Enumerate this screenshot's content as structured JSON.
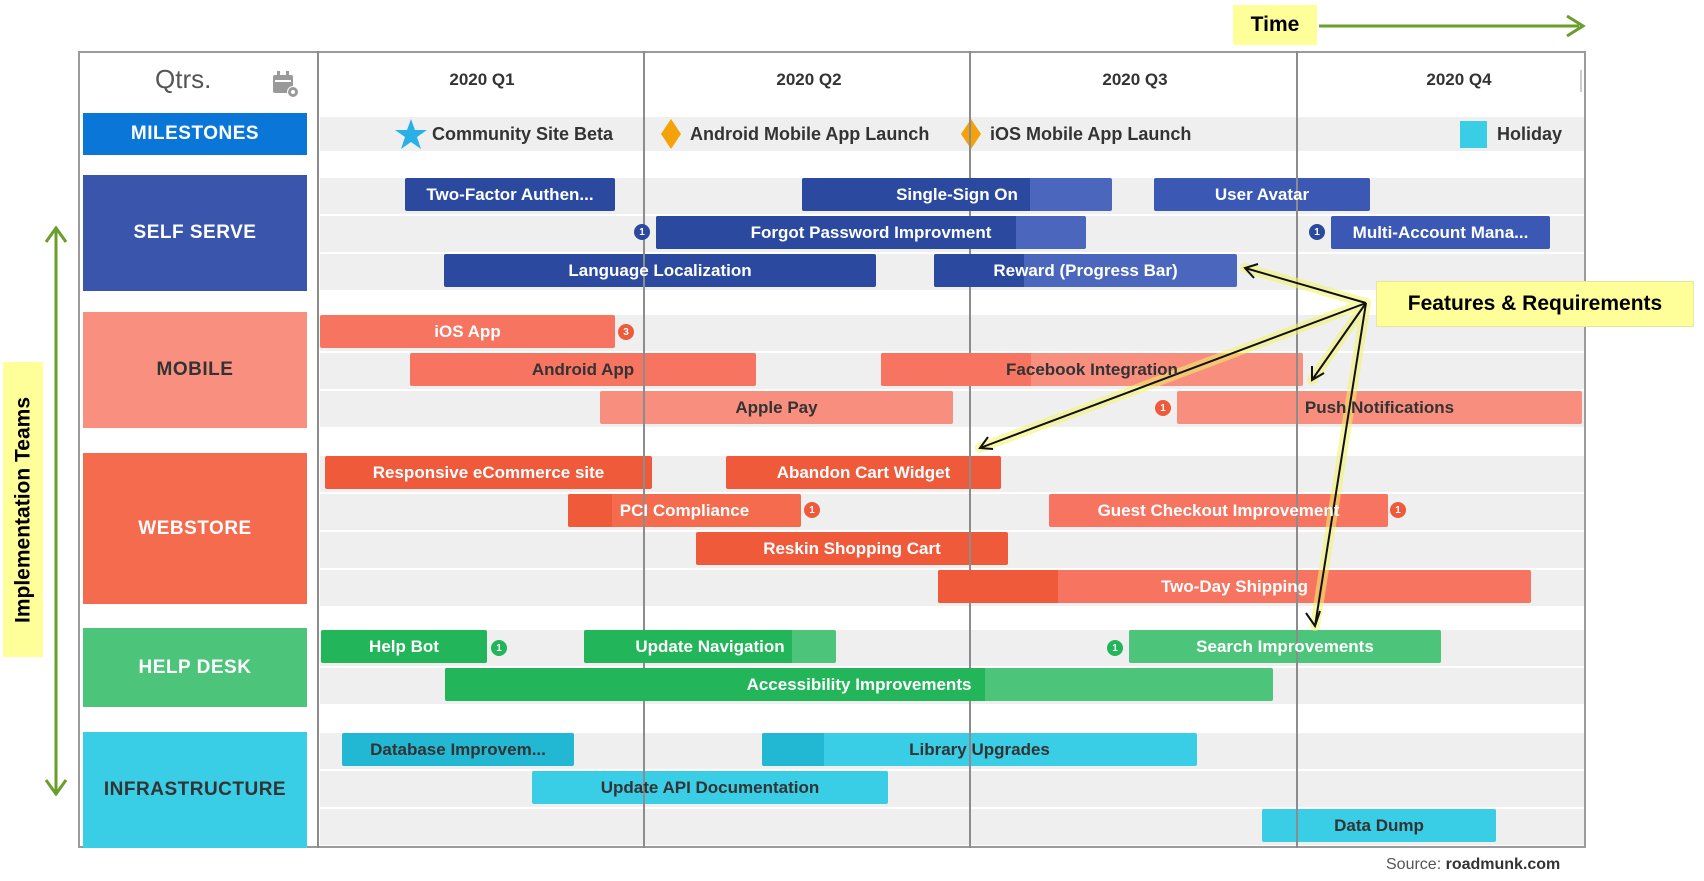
{
  "header": {
    "qtrs_label": "Qtrs.",
    "quarters": [
      "2020 Q1",
      "2020 Q2",
      "2020 Q3",
      "2020 Q4"
    ]
  },
  "time_label": "Time",
  "side_label": "Implementation Teams",
  "callout_label": "Features & Requirements",
  "source": {
    "prefix": "Source: ",
    "site": "roadmunk.com"
  },
  "teams": {
    "milestones": "MILESTONES",
    "self_serve": "SELF SERVE",
    "mobile": "MOBILE",
    "webstore": "WEBSTORE",
    "help_desk": "HELP DESK",
    "infrastructure": "INFRASTRUCTURE"
  },
  "milestones": {
    "m1": "Community Site Beta",
    "m2": "Android Mobile App Launch",
    "m3": "iOS Mobile App Launch",
    "m4": "Holiday"
  },
  "bars": {
    "b1": "Two-Factor Authen...",
    "b2": "Single-Sign On",
    "b3": "User Avatar",
    "b4": "Forgot Password Improvment",
    "b5": "Multi-Account Mana...",
    "b6": "Language Localization",
    "b7": "Reward (Progress Bar)",
    "b8": "iOS App",
    "b9": "Android App",
    "b10": "Facebook Integration",
    "b11": "Apple Pay",
    "b12": "Push Notifications",
    "b13": "Responsive eCommerce site",
    "b14": "Abandon Cart Widget",
    "b15": "PCI Compliance",
    "b16": "Guest Checkout Improvement",
    "b17": "Reskin Shopping Cart",
    "b18": "Two-Day Shipping",
    "b19": "Help Bot",
    "b20": "Update Navigation",
    "b21": "Search Improvements",
    "b22": "Accessibility Improvements",
    "b23": "Database Improvem...",
    "b24": "Library Upgrades",
    "b25": "Update API Documentation",
    "b26": "Data Dump"
  },
  "badges": {
    "forgot": "1",
    "multi": "1",
    "ios": "3",
    "push": "1",
    "pci": "1",
    "guest": "1",
    "helpbot": "1",
    "search": "1"
  },
  "colors": {
    "self_serve": "#3a55ac",
    "mobile": "#f88e7e",
    "webstore": "#f46b4e",
    "help_desk": "#4cc47a",
    "infrastructure": "#39cde6",
    "milestones": "#0a77d8",
    "arrow_green": "#6a9e2a",
    "callout_yellow": "#ffff99"
  }
}
